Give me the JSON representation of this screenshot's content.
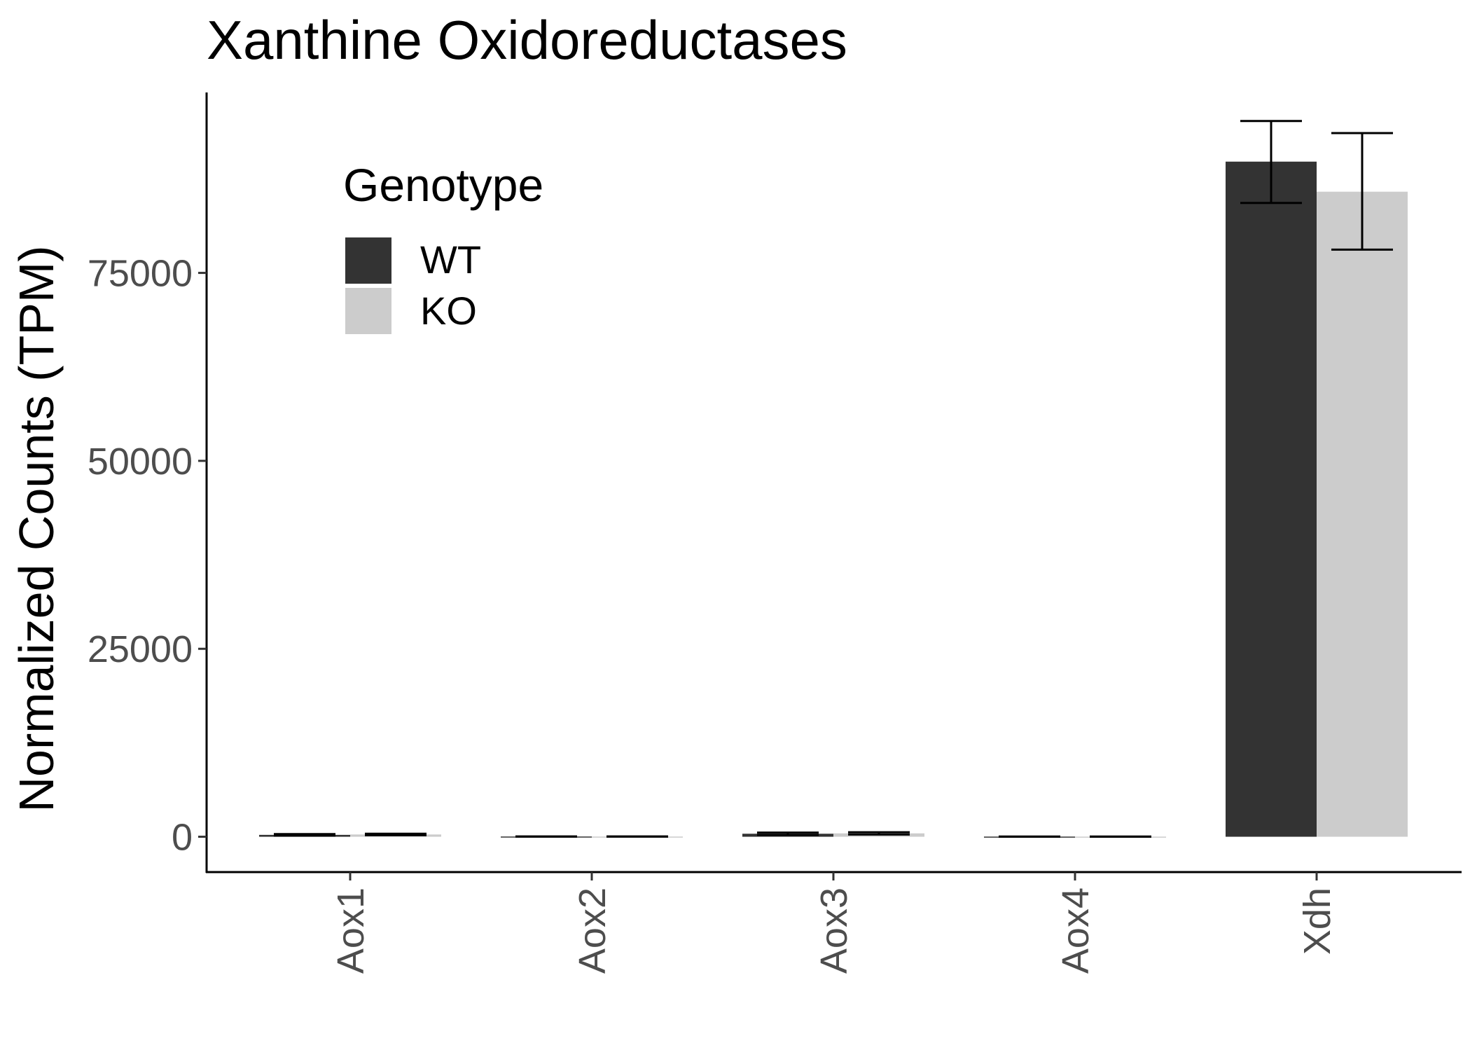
{
  "chart_data": {
    "type": "bar",
    "title": "Xanthine Oxidoreductases",
    "xlabel": "",
    "ylabel": "Normalized Counts (TPM)",
    "categories": [
      "Aox1",
      "Aox2",
      "Aox3",
      "Aox4",
      "Xdh"
    ],
    "series": [
      {
        "name": "WT",
        "color": "#333333",
        "values": [
          250,
          30,
          400,
          20,
          89800
        ],
        "error_low": [
          150,
          20,
          250,
          10,
          84300
        ],
        "error_high": [
          350,
          40,
          550,
          30,
          95200
        ]
      },
      {
        "name": "KO",
        "color": "#cccccc",
        "values": [
          300,
          25,
          450,
          15,
          85800
        ],
        "error_low": [
          200,
          15,
          300,
          5,
          78100
        ],
        "error_high": [
          400,
          35,
          600,
          25,
          93600
        ]
      }
    ],
    "ylim": [
      -4700,
      99000
    ],
    "yticks": [
      0,
      25000,
      50000,
      75000
    ],
    "ytick_labels": [
      "0",
      "25000",
      "50000",
      "75000"
    ],
    "grid": false,
    "legend": {
      "title": "Genotype",
      "position": "top-left-inside",
      "entries": [
        "WT",
        "KO"
      ]
    }
  }
}
